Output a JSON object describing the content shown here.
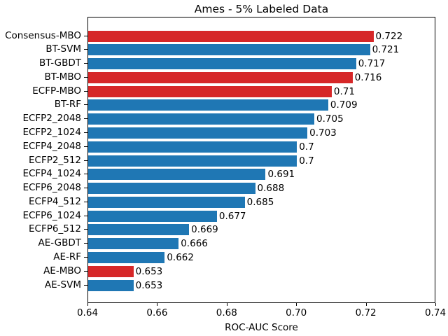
{
  "chart_data": {
    "type": "bar",
    "orientation": "horizontal",
    "title": "Ames - 5% Labeled Data",
    "xlabel": "ROC-AUC Score",
    "ylabel": "",
    "xlim": [
      0.64,
      0.74
    ],
    "xticks": [
      0.64,
      0.66,
      0.68,
      0.7,
      0.72,
      0.74
    ],
    "xtick_labels": [
      "0.64",
      "0.66",
      "0.68",
      "0.70",
      "0.72",
      "0.74"
    ],
    "grid": false,
    "legend": null,
    "categories": [
      "Consensus-MBO",
      "BT-SVM",
      "BT-GBDT",
      "BT-MBO",
      "ECFP-MBO",
      "BT-RF",
      "ECFP2_2048",
      "ECFP2_1024",
      "ECFP4_2048",
      "ECFP2_512",
      "ECFP4_1024",
      "ECFP6_2048",
      "ECFP4_512",
      "ECFP6_1024",
      "ECFP6_512",
      "AE-GBDT",
      "AE-RF",
      "AE-MBO",
      "AE-SVM"
    ],
    "values": [
      0.722,
      0.721,
      0.717,
      0.716,
      0.71,
      0.709,
      0.705,
      0.703,
      0.7,
      0.7,
      0.691,
      0.688,
      0.685,
      0.677,
      0.669,
      0.666,
      0.662,
      0.653,
      0.653
    ],
    "value_labels": [
      "0.722",
      "0.721",
      "0.717",
      "0.716",
      "0.71",
      "0.709",
      "0.705",
      "0.703",
      "0.7",
      "0.7",
      "0.691",
      "0.688",
      "0.685",
      "0.677",
      "0.669",
      "0.666",
      "0.662",
      "0.653",
      "0.653"
    ],
    "bar_colors": [
      "#d62728",
      "#1f77b4",
      "#1f77b4",
      "#d62728",
      "#d62728",
      "#1f77b4",
      "#1f77b4",
      "#1f77b4",
      "#1f77b4",
      "#1f77b4",
      "#1f77b4",
      "#1f77b4",
      "#1f77b4",
      "#1f77b4",
      "#1f77b4",
      "#1f77b4",
      "#1f77b4",
      "#d62728",
      "#1f77b4"
    ],
    "colors": {
      "default_bar": "#1f77b4",
      "highlight_bar": "#d62728",
      "text": "#000000",
      "background": "#ffffff"
    }
  }
}
